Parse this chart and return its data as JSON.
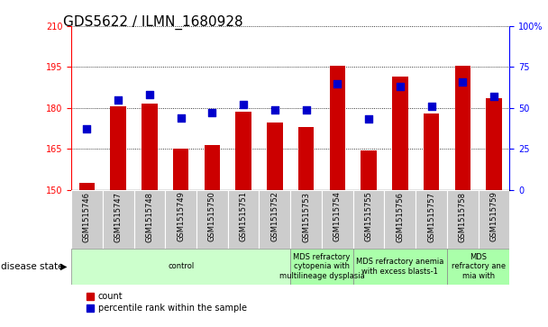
{
  "title": "GDS5622 / ILMN_1680928",
  "samples": [
    "GSM1515746",
    "GSM1515747",
    "GSM1515748",
    "GSM1515749",
    "GSM1515750",
    "GSM1515751",
    "GSM1515752",
    "GSM1515753",
    "GSM1515754",
    "GSM1515755",
    "GSM1515756",
    "GSM1515757",
    "GSM1515758",
    "GSM1515759"
  ],
  "counts": [
    152.5,
    180.5,
    181.5,
    165.0,
    166.5,
    178.5,
    174.5,
    173.0,
    195.5,
    164.5,
    191.5,
    178.0,
    195.5,
    183.5
  ],
  "percentiles": [
    37,
    55,
    58,
    44,
    47,
    52,
    49,
    49,
    65,
    43,
    63,
    51,
    66,
    57
  ],
  "ylim_left": [
    150,
    210
  ],
  "ylim_right": [
    0,
    100
  ],
  "yticks_left": [
    150,
    165,
    180,
    195,
    210
  ],
  "yticks_right": [
    0,
    25,
    50,
    75,
    100
  ],
  "bar_color": "#cc0000",
  "dot_color": "#0000cc",
  "bar_width": 0.5,
  "dot_size": 30,
  "plot_bg_color": "#ffffff",
  "sample_box_color": "#cccccc",
  "disease_groups": [
    {
      "label": "control",
      "start": 0,
      "end": 7,
      "color": "#ccffcc"
    },
    {
      "label": "MDS refractory\ncytopenia with\nmultilineage dysplasia",
      "start": 7,
      "end": 9,
      "color": "#aaffaa"
    },
    {
      "label": "MDS refractory anemia\nwith excess blasts-1",
      "start": 9,
      "end": 12,
      "color": "#aaffaa"
    },
    {
      "label": "MDS\nrefractory ane\nmia with",
      "start": 12,
      "end": 14,
      "color": "#aaffaa"
    }
  ],
  "legend_count": "count",
  "legend_percentile": "percentile rank within the sample",
  "title_fontsize": 11,
  "tick_fontsize": 7,
  "sample_fontsize": 6,
  "disease_fontsize": 6,
  "legend_fontsize": 7
}
